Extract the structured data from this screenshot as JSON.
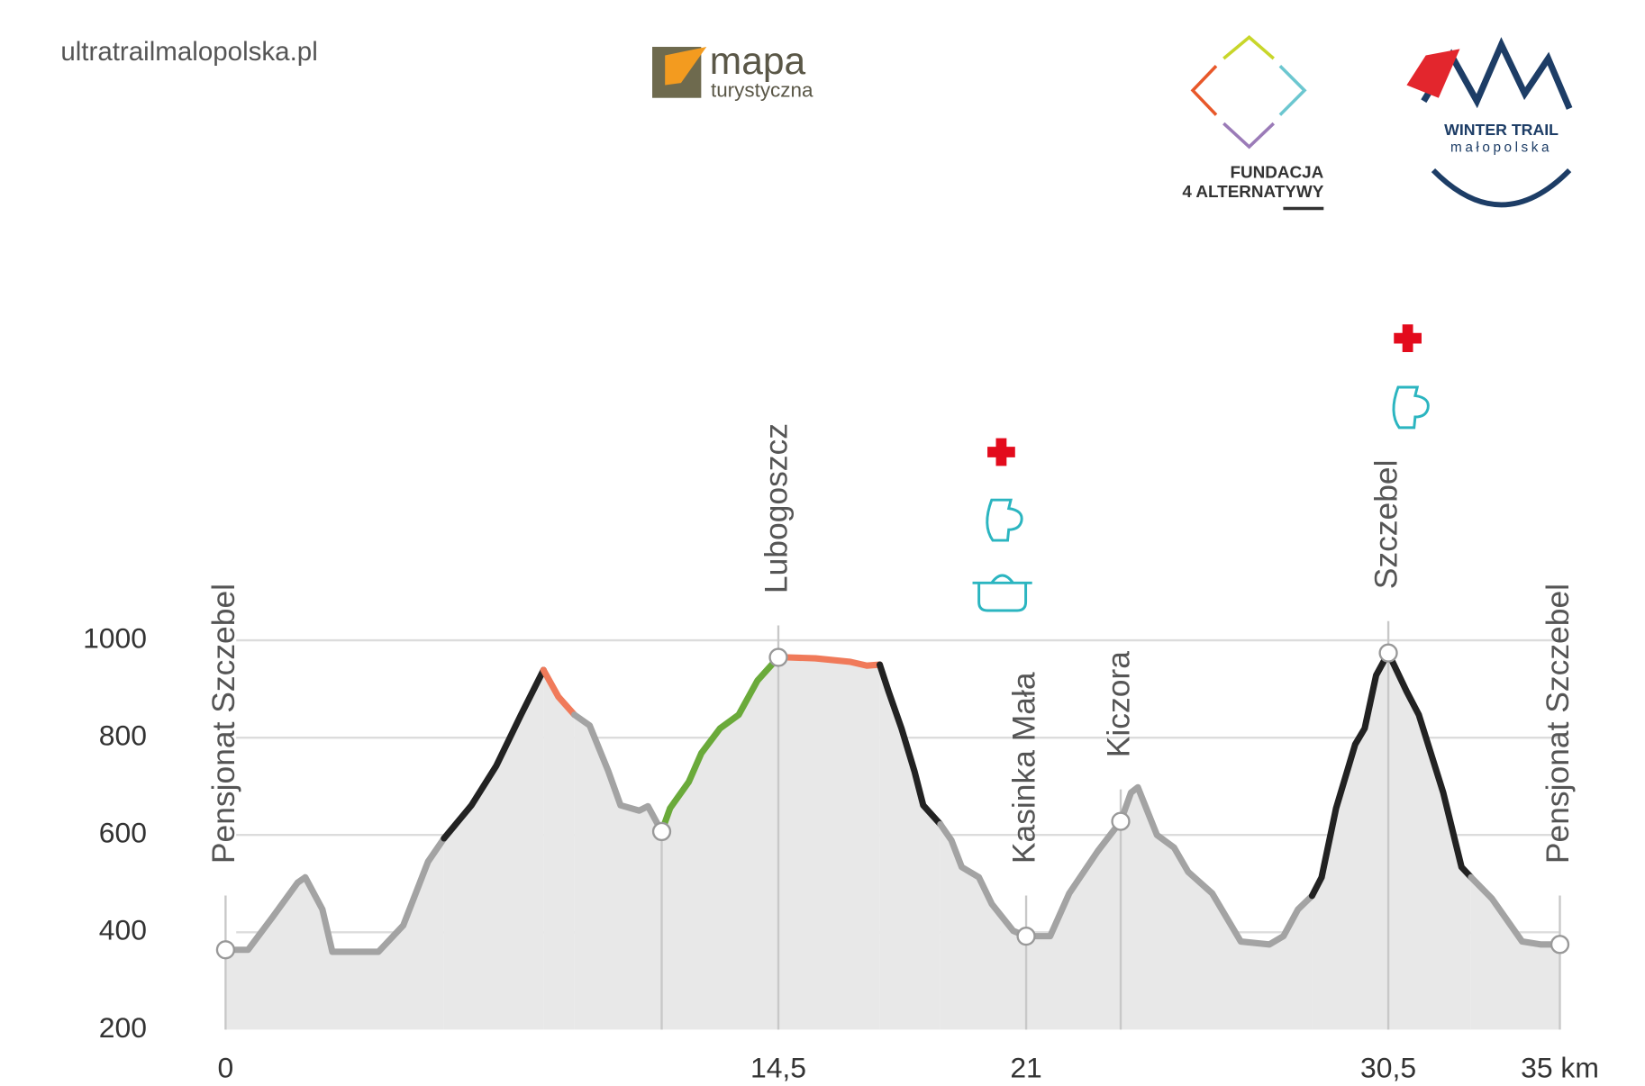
{
  "header": {
    "site": "ultratrailmalopolska.pl",
    "logo1_main": "mapa",
    "logo1_sub": "turystyczna",
    "logo2_line1": "FUNDACJA",
    "logo2_line2": "4 ALTERNATYWY",
    "logo3_line1": "WINTER TRAIL",
    "logo3_line2": "małopolska"
  },
  "chart_data": {
    "type": "elevation-profile",
    "xlim": [
      0,
      35
    ],
    "ylim": [
      200,
      1000
    ],
    "yticks": [
      200,
      400,
      600,
      800,
      1000
    ],
    "xticks": [
      0,
      {
        "value": 14.5,
        "label": "14,5"
      },
      21,
      {
        "value": 30.5,
        "label": "30,5"
      },
      {
        "value": 35,
        "label": "35 km"
      }
    ],
    "grid": true,
    "fill_color": "#e8e8e8",
    "segments": [
      {
        "color": "#a3a3a3",
        "x": [
          0,
          0.59,
          1.24,
          1.89,
          2.09,
          2.54,
          2.8,
          3.36,
          4.01,
          4.66,
          5.31,
          5.73
        ],
        "y": [
          364,
          364,
          432,
          502,
          513,
          447,
          360,
          360,
          360,
          414,
          545,
          593
        ]
      },
      {
        "color": "#222222",
        "x": [
          5.73,
          6.45,
          7.1,
          7.75,
          8.34
        ],
        "y": [
          593,
          661,
          742,
          847,
          939
        ]
      },
      {
        "color": "#f07a5a",
        "x": [
          8.34,
          8.73,
          9.15
        ],
        "y": [
          939,
          884,
          847
        ]
      },
      {
        "color": "#a3a3a3",
        "x": [
          9.15,
          9.55,
          10.04,
          10.36,
          10.85,
          11.08,
          11.44
        ],
        "y": [
          847,
          825,
          731,
          661,
          650,
          659,
          607
        ]
      },
      {
        "color": "#6aaa3a",
        "x": [
          11.44,
          11.66,
          12.15,
          12.48,
          12.97,
          13.46,
          13.95,
          14.5
        ],
        "y": [
          607,
          655,
          709,
          768,
          819,
          847,
          917,
          965
        ]
      },
      {
        "color": "#f07a5a",
        "x": [
          14.5,
          14.73,
          15.47,
          16.37,
          16.82,
          17.16
        ],
        "y": [
          965,
          965,
          963,
          956,
          948,
          950
        ]
      },
      {
        "color": "#222222",
        "x": [
          17.16,
          17.39,
          17.73,
          18.07,
          18.3,
          18.75
        ],
        "y": [
          950,
          895,
          819,
          731,
          661,
          622
        ]
      },
      {
        "color": "#a3a3a3",
        "x": [
          18.75,
          19.04,
          19.31,
          19.76,
          20.1,
          20.66,
          21.0,
          21.63,
          22.13,
          22.88,
          23.48,
          23.75,
          23.93,
          24.43,
          24.88,
          25.25,
          25.88,
          26.63,
          27.38,
          27.75,
          28.13,
          28.5
        ],
        "y": [
          622,
          589,
          534,
          513,
          458,
          403,
          392,
          392,
          480,
          567,
          628,
          687,
          698,
          600,
          574,
          524,
          480,
          381,
          375,
          392,
          447,
          475
        ]
      },
      {
        "color": "#222222",
        "x": [
          28.5,
          28.75,
          29.13,
          29.63,
          29.88,
          30.18,
          30.5,
          30.98,
          31.3,
          31.94,
          32.42,
          32.67
        ],
        "y": [
          475,
          513,
          655,
          786,
          819,
          928,
          974,
          895,
          847,
          687,
          534,
          513
        ]
      },
      {
        "color": "#a3a3a3",
        "x": [
          32.67,
          33.22,
          34.01,
          34.49,
          35
        ],
        "y": [
          513,
          469,
          381,
          375,
          375
        ]
      }
    ],
    "waypoints": [
      {
        "x": 0,
        "y": 364,
        "label": "Pensjonat  Szczebel"
      },
      {
        "x": 11.44,
        "y": 607
      },
      {
        "x": 14.5,
        "y": 965,
        "label": "Lubogoszcz"
      },
      {
        "x": 21,
        "y": 392,
        "label": "Kasinka Mała"
      },
      {
        "x": 23.48,
        "y": 628,
        "label": "Kiczora"
      },
      {
        "x": 30.5,
        "y": 974,
        "label": "Szczebel"
      },
      {
        "x": 35,
        "y": 375,
        "label": "Pensjonat  Szczebel"
      }
    ]
  }
}
